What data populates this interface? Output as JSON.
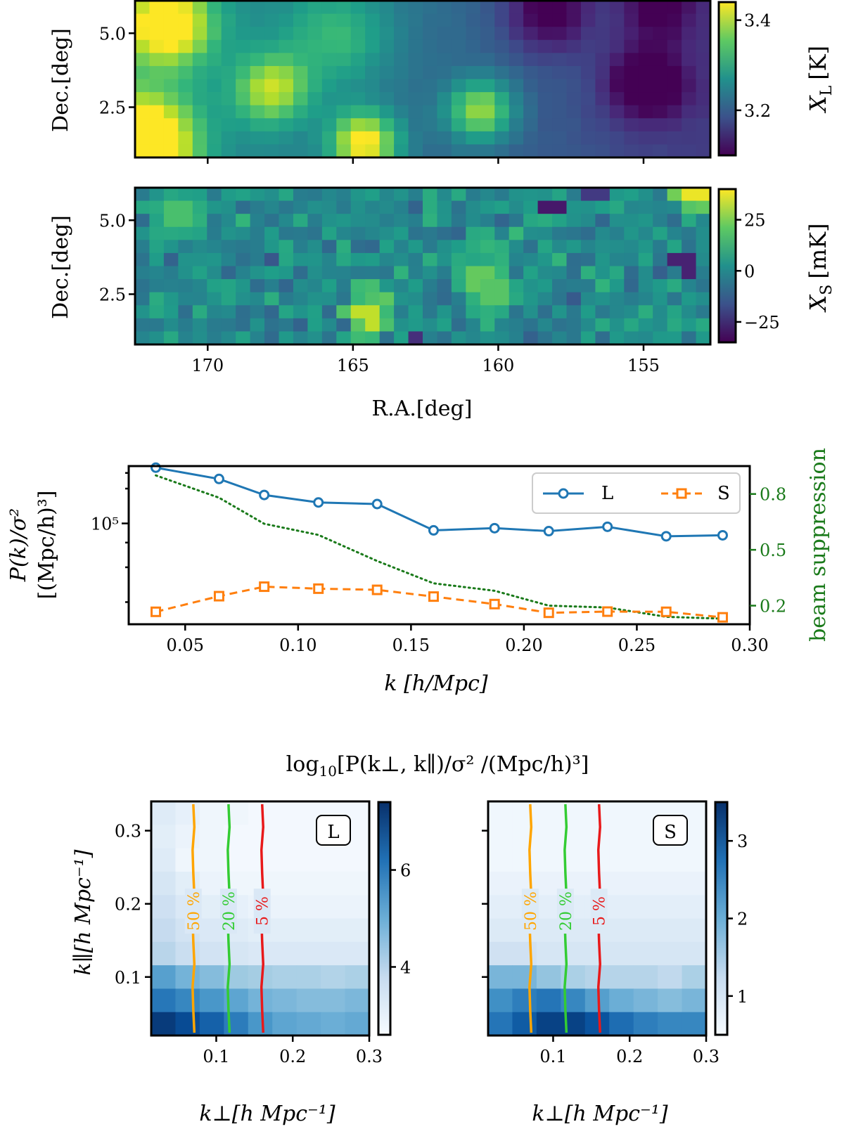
{
  "colors": {
    "line_L": "#1f77b4",
    "line_S": "#ff7f0e",
    "beam": "#1a7a1a",
    "contour_50": "#ffa500",
    "contour_20": "#33cc33",
    "contour_5": "#e8191a"
  },
  "chart_data": [
    {
      "type": "heatmap",
      "id": "xl-map",
      "x_ticks": [
        "170",
        "165",
        "160",
        "155"
      ],
      "x_tick_values": [
        170,
        165,
        160,
        155
      ],
      "xlim": [
        172.5,
        152.7
      ],
      "y_ticks": [
        "5.0",
        "2.5"
      ],
      "y_tick_values": [
        5.0,
        2.5
      ],
      "ylim": [
        0.8,
        6.1
      ],
      "ylabel": "Dec.[deg]",
      "colormap": "viridis",
      "colorbar_ticks": [
        "3.4",
        "3.2"
      ],
      "colorbar_tick_values": [
        3.4,
        3.2
      ],
      "colorbar_range": [
        3.1,
        3.44
      ],
      "colorbar_label": "X",
      "colorbar_label_sub": "L",
      "colorbar_label_unit": "[K]",
      "blobs": [
        {
          "ra": 171.4,
          "dec": 5.3,
          "amp": 0.22,
          "sig": 1.1
        },
        {
          "ra": 172.2,
          "dec": 1.3,
          "amp": 0.28,
          "sig": 1.2
        },
        {
          "ra": 167.8,
          "dec": 3.1,
          "amp": 0.16,
          "sig": 0.9
        },
        {
          "ra": 164.6,
          "dec": 1.3,
          "amp": 0.22,
          "sig": 0.8
        },
        {
          "ra": 160.6,
          "dec": 2.4,
          "amp": 0.18,
          "sig": 0.8
        },
        {
          "ra": 165.5,
          "dec": 4.9,
          "amp": 0.09,
          "sig": 1.3
        },
        {
          "ra": 158.3,
          "dec": 5.7,
          "amp": -0.11,
          "sig": 1.0
        },
        {
          "ra": 154.9,
          "dec": 3.3,
          "amp": -0.12,
          "sig": 1.0
        },
        {
          "ra": 154.5,
          "dec": 5.9,
          "amp": -0.09,
          "sig": 0.9
        }
      ]
    },
    {
      "type": "heatmap",
      "id": "xs-map",
      "x_ticks": [
        "170",
        "165",
        "160",
        "155"
      ],
      "x_tick_values": [
        170,
        165,
        160,
        155
      ],
      "xlim": [
        172.5,
        152.7
      ],
      "y_ticks": [
        "5.0",
        "2.5"
      ],
      "y_tick_values": [
        5.0,
        2.5
      ],
      "ylim": [
        0.8,
        6.1
      ],
      "xlabel": "R.A.[deg]",
      "ylabel": "Dec.[deg]",
      "colormap": "viridis",
      "colorbar_ticks": [
        "25",
        "0",
        "−25"
      ],
      "colorbar_tick_values": [
        25,
        0,
        -25
      ],
      "colorbar_range": [
        -35,
        40
      ],
      "colorbar_label": "X",
      "colorbar_label_sub": "S",
      "colorbar_label_unit": "[mK]",
      "hot_pixels": [
        {
          "ra": 164.4,
          "dec": 1.9,
          "value": 33
        },
        {
          "ra": 153.1,
          "dec": 6.0,
          "value": 38
        },
        {
          "ra": 160.7,
          "dec": 3.2,
          "value": 22
        },
        {
          "ra": 160.2,
          "dec": 2.6,
          "value": 20
        },
        {
          "ra": 171.0,
          "dec": 5.1,
          "value": 18
        }
      ],
      "cold_pixels": [
        {
          "ra": 158.1,
          "dec": 5.4,
          "value": -30
        },
        {
          "ra": 153.6,
          "dec": 3.6,
          "value": -28
        },
        {
          "ra": 162.8,
          "dec": 0.9,
          "value": -25
        },
        {
          "ra": 156.5,
          "dec": 6.0,
          "value": -22
        }
      ]
    },
    {
      "type": "line",
      "id": "pk-plot",
      "xlabel": "k [h/Mpc]",
      "ylabel_line1": "P(k)/σ²",
      "ylabel_line2": "[(Mpc/h)³]",
      "ylabel_right": "beam suppression",
      "xlim": [
        0.025,
        0.3
      ],
      "x_ticks": [
        "0.05",
        "0.10",
        "0.15",
        "0.20",
        "0.25",
        "0.30"
      ],
      "x_tick_values": [
        0.05,
        0.1,
        0.15,
        0.2,
        0.25,
        0.3
      ],
      "ylim_log10": [
        4.49,
        5.29
      ],
      "y_ticks": [
        "10⁵"
      ],
      "y_tick_values_log10": [
        5.0
      ],
      "right_ylim": [
        0.1,
        0.95
      ],
      "right_y_ticks": [
        "0.8",
        "0.5",
        "0.2"
      ],
      "right_y_tick_values": [
        0.8,
        0.5,
        0.2
      ],
      "x": [
        0.037,
        0.065,
        0.085,
        0.109,
        0.135,
        0.16,
        0.187,
        0.211,
        0.237,
        0.263,
        0.288
      ],
      "series": [
        {
          "name": "L",
          "style": "solid-circle",
          "values_log10": [
            5.282,
            5.225,
            5.144,
            5.106,
            5.098,
            4.965,
            4.976,
            4.961,
            4.983,
            4.935,
            4.94
          ]
        },
        {
          "name": "S",
          "style": "dashed-square",
          "values_log10": [
            4.553,
            4.632,
            4.68,
            4.67,
            4.664,
            4.63,
            4.592,
            4.548,
            4.554,
            4.553,
            4.525
          ]
        },
        {
          "name": "beam suppression",
          "style": "dotted",
          "axis": "right",
          "values": [
            0.9,
            0.78,
            0.64,
            0.58,
            0.44,
            0.32,
            0.28,
            0.2,
            0.19,
            0.14,
            0.13
          ]
        }
      ],
      "legend": {
        "position": "top-right",
        "entries": [
          "L",
          "S"
        ]
      }
    },
    {
      "type": "heatmap",
      "id": "pk2d-L",
      "suptitle_prefix": "log",
      "suptitle_sub": "10",
      "suptitle_rest": "[P(k⊥, k∥)/σ² /(Mpc/h)³]",
      "label": "L",
      "xlabel": "k⊥[h Mpc⁻¹]",
      "ylabel": "k∥[h Mpc⁻¹]",
      "xlim": [
        0.015,
        0.3
      ],
      "ylim": [
        0.02,
        0.34
      ],
      "x_ticks": [
        "0.1",
        "0.2",
        "0.3"
      ],
      "x_tick_values": [
        0.1,
        0.2,
        0.3
      ],
      "y_ticks": [
        "0.3",
        "0.2",
        "0.1"
      ],
      "y_tick_values": [
        0.3,
        0.2,
        0.1
      ],
      "colormap": "Blues",
      "colorbar_range": [
        2.6,
        7.4
      ],
      "colorbar_ticks": [
        "6",
        "4"
      ],
      "colorbar_tick_values": [
        6,
        4
      ],
      "grid_cols": 9,
      "grid_rows": 10,
      "cells": [
        [
          3.2,
          3.0,
          2.8,
          2.8,
          2.7,
          2.7,
          2.7,
          2.7,
          2.7
        ],
        [
          3.1,
          2.9,
          2.8,
          2.7,
          2.7,
          2.7,
          2.7,
          2.7,
          2.7
        ],
        [
          3.2,
          2.8,
          2.8,
          2.7,
          2.7,
          2.7,
          2.7,
          2.7,
          2.7
        ],
        [
          3.4,
          3.1,
          2.9,
          2.8,
          2.8,
          2.8,
          2.8,
          2.8,
          2.8
        ],
        [
          3.6,
          3.3,
          3.1,
          3.0,
          2.9,
          2.9,
          2.9,
          2.9,
          2.9
        ],
        [
          3.8,
          3.5,
          3.3,
          3.2,
          3.1,
          3.1,
          3.1,
          3.1,
          3.1
        ],
        [
          4.0,
          3.7,
          3.5,
          3.4,
          3.3,
          3.3,
          3.3,
          3.3,
          3.3
        ],
        [
          5.3,
          4.9,
          4.7,
          4.4,
          4.3,
          4.2,
          4.2,
          4.1,
          4.2
        ],
        [
          6.1,
          5.8,
          5.5,
          5.2,
          4.9,
          4.8,
          4.7,
          4.7,
          4.8
        ],
        [
          7.2,
          6.9,
          6.5,
          6.0,
          5.5,
          5.2,
          5.1,
          5.0,
          5.1
        ]
      ],
      "contours": [
        {
          "label": "50 %",
          "k_perp": 0.07,
          "color_key": "contour_50"
        },
        {
          "label": "20 %",
          "k_perp": 0.116,
          "color_key": "contour_20"
        },
        {
          "label": "5 %",
          "k_perp": 0.16,
          "color_key": "contour_5"
        }
      ]
    },
    {
      "type": "heatmap",
      "id": "pk2d-S",
      "label": "S",
      "xlabel": "k⊥[h Mpc⁻¹]",
      "xlim": [
        0.015,
        0.3
      ],
      "ylim": [
        0.02,
        0.34
      ],
      "x_ticks": [
        "0.1",
        "0.2",
        "0.3"
      ],
      "x_tick_values": [
        0.1,
        0.2,
        0.3
      ],
      "y_tick_values": [
        0.3,
        0.2,
        0.1
      ],
      "colormap": "Blues",
      "colorbar_range": [
        0.5,
        3.5
      ],
      "colorbar_ticks": [
        "3",
        "2",
        "1"
      ],
      "colorbar_tick_values": [
        3,
        2,
        1
      ],
      "grid_cols": 9,
      "grid_rows": 10,
      "cells": [
        [
          0.6,
          0.6,
          0.6,
          0.6,
          0.6,
          0.6,
          0.6,
          0.6,
          0.6
        ],
        [
          0.6,
          0.6,
          0.6,
          0.6,
          0.6,
          0.6,
          0.6,
          0.6,
          0.6
        ],
        [
          0.6,
          0.6,
          0.6,
          0.6,
          0.6,
          0.6,
          0.6,
          0.6,
          0.6
        ],
        [
          0.7,
          0.7,
          0.7,
          0.7,
          0.7,
          0.7,
          0.7,
          0.7,
          0.7
        ],
        [
          0.8,
          0.8,
          0.8,
          0.8,
          0.8,
          0.8,
          0.8,
          0.8,
          0.8
        ],
        [
          0.9,
          0.9,
          0.9,
          0.9,
          0.9,
          0.9,
          0.9,
          0.9,
          0.9
        ],
        [
          1.1,
          1.1,
          1.0,
          1.0,
          1.0,
          1.0,
          1.0,
          1.0,
          1.0
        ],
        [
          1.9,
          1.9,
          1.7,
          1.5,
          1.4,
          1.4,
          1.4,
          1.3,
          1.5
        ],
        [
          2.4,
          2.6,
          2.7,
          2.5,
          2.2,
          2.0,
          1.9,
          1.8,
          1.9
        ],
        [
          2.7,
          3.0,
          3.3,
          3.3,
          3.1,
          2.8,
          2.6,
          2.5,
          2.5
        ]
      ],
      "contours": [
        {
          "label": "50 %",
          "k_perp": 0.07,
          "color_key": "contour_50"
        },
        {
          "label": "20 %",
          "k_perp": 0.116,
          "color_key": "contour_20"
        },
        {
          "label": "5 %",
          "k_perp": 0.16,
          "color_key": "contour_5"
        }
      ]
    }
  ]
}
